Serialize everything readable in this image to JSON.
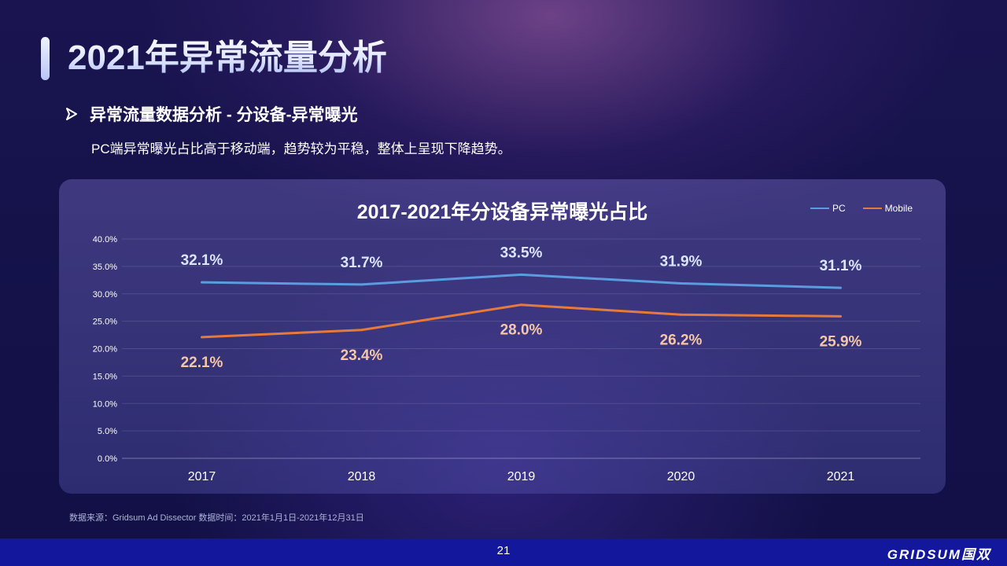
{
  "page": {
    "title": "2021年异常流量分析",
    "subhead": "异常流量数据分析 - 分设备-异常曝光",
    "description": "PC端异常曝光占比高于移动端，趋势较为平稳，整体上呈现下降趋势。",
    "source": "数据来源：Gridsum Ad Dissector 数据时间：2021年1月1日-2021年12月31日",
    "page_number": "21",
    "logo": "GRIDSUM国双"
  },
  "icons": {
    "bullet": "arrow-right-icon"
  },
  "colors": {
    "pc": "#5b9be0",
    "mobile": "#e57a3c",
    "pc_label": "#dbe5ff",
    "mobile_label": "#f7c7a5"
  },
  "chart_data": {
    "type": "line",
    "title": "2017-2021年分设备异常曝光占比",
    "categories": [
      "2017",
      "2018",
      "2019",
      "2020",
      "2021"
    ],
    "series": [
      {
        "name": "PC",
        "values": [
          32.1,
          31.7,
          33.5,
          31.9,
          31.1
        ],
        "labels": [
          "32.1%",
          "31.7%",
          "33.5%",
          "31.9%",
          "31.1%"
        ]
      },
      {
        "name": "Mobile",
        "values": [
          22.1,
          23.4,
          28.0,
          26.2,
          25.9
        ],
        "labels": [
          "22.1%",
          "23.4%",
          "28.0%",
          "26.2%",
          "25.9%"
        ]
      }
    ],
    "ylim": [
      0,
      40
    ],
    "yticks": [
      "0.0%",
      "5.0%",
      "10.0%",
      "15.0%",
      "20.0%",
      "25.0%",
      "30.0%",
      "35.0%",
      "40.0%"
    ],
    "xlabel": "",
    "ylabel": "",
    "grid": true,
    "legend_position": "top-right"
  }
}
